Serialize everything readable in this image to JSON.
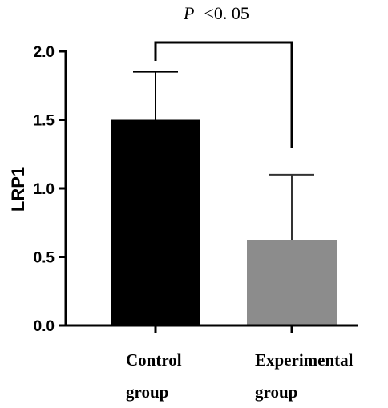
{
  "chart_data": {
    "type": "bar",
    "categories": [
      [
        "Control",
        "group"
      ],
      [
        "Experimental",
        "group"
      ]
    ],
    "values": [
      1.5,
      0.62
    ],
    "error_upper": [
      1.85,
      1.1
    ],
    "colors": [
      "#000000",
      "#8c8c8c"
    ],
    "ylabel": "LRP1",
    "ylim": [
      0,
      2.0
    ],
    "yticks": [
      "0.0",
      "0.5",
      "1.0",
      "1.5",
      "2.0"
    ],
    "yticks_values": [
      0,
      0.5,
      1.0,
      1.5,
      2.0
    ],
    "annotation": {
      "italic": "P",
      "text": "<0. 05"
    }
  }
}
